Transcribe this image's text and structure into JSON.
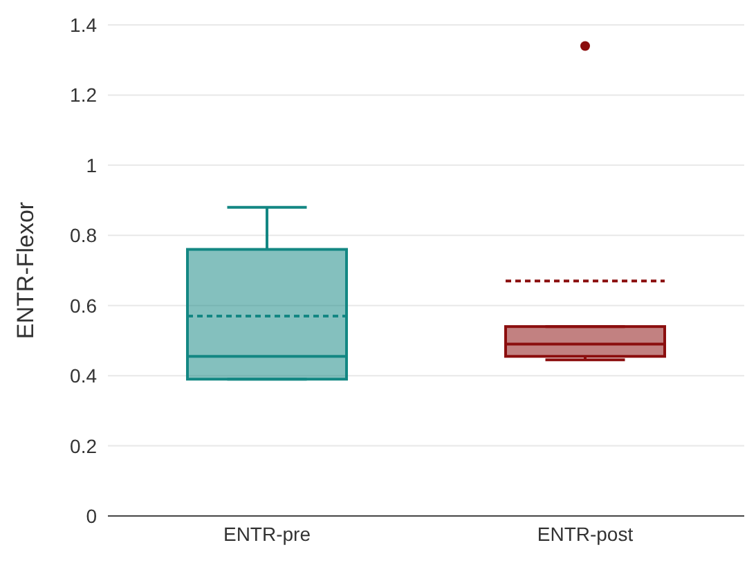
{
  "chart_data": {
    "type": "box",
    "ylabel": "ENTR-Flexor",
    "categories": [
      "ENTR-pre",
      "ENTR-post"
    ],
    "colors": [
      "#138783",
      "#8b0e0e"
    ],
    "boxes": [
      {
        "low": 0.39,
        "q1": 0.39,
        "median": 0.455,
        "q3": 0.76,
        "high": 0.88,
        "mean": 0.57
      },
      {
        "low": 0.445,
        "q1": 0.455,
        "median": 0.49,
        "q3": 0.54,
        "high": 0.54,
        "mean": 0.67,
        "outliers": [
          1.34
        ]
      }
    ],
    "ylim": [
      0,
      1.4
    ],
    "yticks": [
      0,
      0.2,
      0.4,
      0.6,
      0.8,
      1,
      1.2,
      1.4
    ],
    "grid": "y"
  }
}
